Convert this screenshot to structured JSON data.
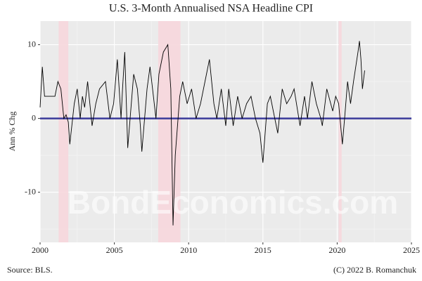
{
  "chart_data": {
    "type": "line",
    "title": "U.S. 3-Month Annualised NSA Headline CPI",
    "y_label": "Ann % Chg",
    "watermark": "BondEconomics.com",
    "source": "Source: BLS.",
    "credit": "(C) 2022 B. Romanchuk",
    "x": [
      2000.0,
      2000.15,
      2000.3,
      2000.5,
      2000.75,
      2001.0,
      2001.2,
      2001.4,
      2001.6,
      2001.75,
      2001.9,
      2002.0,
      2002.3,
      2002.5,
      2002.7,
      2002.85,
      2003.0,
      2003.2,
      2003.5,
      2003.75,
      2004.0,
      2004.4,
      2004.7,
      2004.95,
      2005.2,
      2005.45,
      2005.55,
      2005.7,
      2005.9,
      2006.3,
      2006.55,
      2006.75,
      2006.85,
      2007.2,
      2007.4,
      2007.8,
      2008.0,
      2008.3,
      2008.6,
      2008.8,
      2008.95,
      2009.1,
      2009.4,
      2009.6,
      2009.9,
      2010.2,
      2010.5,
      2010.8,
      2011.1,
      2011.4,
      2011.7,
      2011.9,
      2012.2,
      2012.5,
      2012.7,
      2013.0,
      2013.3,
      2013.6,
      2013.9,
      2014.2,
      2014.5,
      2014.8,
      2015.0,
      2015.3,
      2015.5,
      2015.8,
      2016.0,
      2016.3,
      2016.6,
      2016.9,
      2017.1,
      2017.5,
      2017.8,
      2018.0,
      2018.3,
      2018.6,
      2018.9,
      2019.0,
      2019.3,
      2019.7,
      2019.9,
      2020.1,
      2020.35,
      2020.5,
      2020.7,
      2020.9,
      2021.1,
      2021.4,
      2021.5,
      2021.6,
      2021.7,
      2021.85
    ],
    "values": [
      1.5,
      7,
      3,
      3,
      3,
      3,
      5,
      4,
      0,
      0.5,
      -0.5,
      -3.5,
      2,
      4,
      0,
      3,
      1.5,
      5,
      -1,
      2,
      4,
      5,
      0,
      2,
      8,
      0,
      4,
      9,
      -4,
      6,
      4,
      -1,
      -4.5,
      4,
      7,
      0,
      6,
      9,
      10,
      4,
      -14.5,
      -5,
      3,
      5,
      2,
      4,
      0,
      2,
      5,
      8,
      2,
      0,
      4,
      -1,
      4,
      -1,
      3,
      0,
      2,
      3,
      0,
      -2,
      -6,
      2,
      3,
      0,
      -2,
      4,
      2,
      3,
      4,
      -1,
      3,
      0,
      5,
      2,
      0,
      -1,
      4,
      1,
      3,
      2,
      -3.5,
      0,
      5,
      2,
      5,
      9,
      10.5,
      8,
      4,
      6.5
    ],
    "color": "#000000",
    "recessions": [
      [
        2001.25,
        2001.9
      ],
      [
        2007.95,
        2009.45
      ],
      [
        2020.1,
        2020.3
      ]
    ],
    "recession_color": "#f7d7dd",
    "hline": 0,
    "hline_color": "#3b3b9a",
    "xlim": [
      2000,
      2025
    ],
    "xticks": [
      2000,
      2005,
      2010,
      2015,
      2020,
      2025
    ],
    "ylim": [
      -16.8,
      13.2
    ],
    "yticks": [
      -10,
      0,
      10
    ],
    "grid": true
  }
}
